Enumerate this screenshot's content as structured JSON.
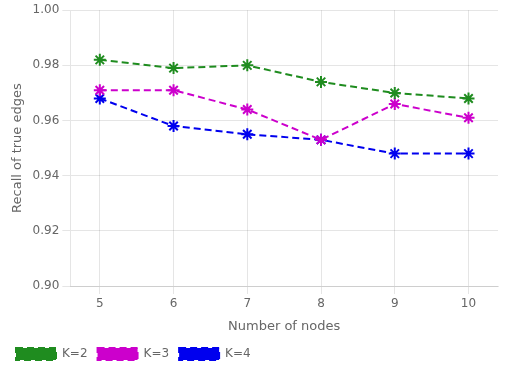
{
  "chart_data": {
    "type": "line",
    "xlabel": "Number of nodes",
    "ylabel": "Recall of true edges",
    "x": [
      5,
      6,
      7,
      8,
      9,
      10
    ],
    "series": [
      {
        "name": "K=2",
        "color": "#1f8c1f",
        "values": [
          0.982,
          0.979,
          0.98,
          0.974,
          0.97,
          0.968
        ]
      },
      {
        "name": "K=3",
        "color": "#cc00cc",
        "values": [
          0.971,
          0.971,
          0.964,
          0.953,
          0.966,
          0.961
        ]
      },
      {
        "name": "K=4",
        "color": "#0000ee",
        "values": [
          0.968,
          0.958,
          0.955,
          0.953,
          0.948,
          0.948
        ]
      }
    ],
    "xlim": [
      4.6,
      10.4
    ],
    "ylim": [
      0.9,
      1.0
    ],
    "xticks": [
      5,
      6,
      7,
      8,
      9,
      10
    ],
    "yticks": [
      {
        "value": 0.9,
        "label": "0.90"
      },
      0.92,
      0.94,
      0.96,
      0.98,
      {
        "value": 1.0,
        "label": "1.00"
      }
    ],
    "marker": "star",
    "line_style": "dashed",
    "grid": true,
    "legend": "lower left"
  }
}
